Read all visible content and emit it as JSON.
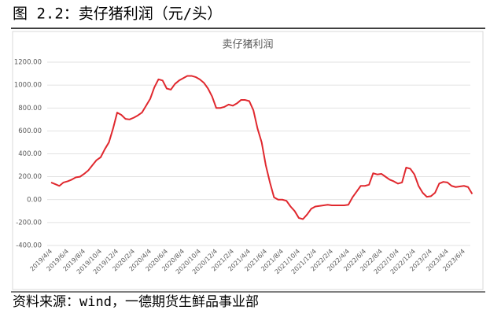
{
  "header": {
    "title": "图 2.2：卖仔猪利润（元/头）"
  },
  "source": "资料来源：wind，一德期货生鲜品事业部",
  "chart_data": {
    "type": "line",
    "title": "卖仔猪利润",
    "categories": [
      "2019/4/4",
      null,
      null,
      null,
      "2019/6/4",
      null,
      null,
      null,
      "2019/8/4",
      null,
      null,
      null,
      "2019/10/4",
      null,
      null,
      null,
      "2019/12/4",
      null,
      null,
      null,
      "2020/2/4",
      null,
      null,
      null,
      "2020/4/4",
      null,
      null,
      null,
      "2020/6/4",
      null,
      null,
      null,
      "2020/8/4",
      null,
      null,
      null,
      "2020/10/4",
      null,
      null,
      null,
      "2020/12/4",
      null,
      null,
      null,
      "2021/2/4",
      null,
      null,
      null,
      "2021/4/4",
      null,
      null,
      null,
      "2021/6/4",
      null,
      null,
      null,
      "2021/8/4",
      null,
      null,
      null,
      "2021/10/4",
      null,
      null,
      null,
      "2021/12/4",
      null,
      null,
      null,
      "2022/2/4",
      null,
      null,
      null,
      "2022/4/4",
      null,
      null,
      null,
      "2022/6/4",
      null,
      null,
      null,
      "2022/8/4",
      null,
      null,
      null,
      "2022/10/4",
      null,
      null,
      null,
      "2022/12/4",
      null,
      null,
      null,
      "2023/2/4",
      null,
      null,
      null,
      "2023/4/4",
      null,
      null,
      null,
      "2023/6/4",
      null,
      null
    ],
    "values": [
      150,
      135,
      120,
      150,
      160,
      175,
      195,
      200,
      225,
      255,
      300,
      345,
      370,
      440,
      500,
      620,
      760,
      740,
      705,
      700,
      715,
      735,
      760,
      820,
      880,
      980,
      1050,
      1040,
      970,
      960,
      1010,
      1040,
      1060,
      1080,
      1080,
      1070,
      1050,
      1020,
      970,
      900,
      800,
      800,
      810,
      830,
      820,
      840,
      870,
      870,
      860,
      780,
      620,
      500,
      300,
      150,
      20,
      0,
      0,
      -10,
      -60,
      -100,
      -160,
      -170,
      -130,
      -80,
      -60,
      -55,
      -50,
      -45,
      -50,
      -50,
      -50,
      -50,
      -45,
      20,
      70,
      120,
      120,
      130,
      230,
      220,
      225,
      200,
      175,
      160,
      140,
      150,
      280,
      270,
      220,
      120,
      60,
      25,
      30,
      60,
      140,
      155,
      150,
      120,
      110,
      115,
      120,
      110,
      50
    ],
    "color": "#e0282e",
    "ylim": [
      -400,
      1200
    ],
    "yticks": [
      {
        "value": -400,
        "label": "-400.00"
      },
      {
        "value": -200,
        "label": "-200.00"
      },
      {
        "value": 0,
        "label": "0.00"
      },
      {
        "value": 200,
        "label": "200.00"
      },
      {
        "value": 400,
        "label": "400.00"
      },
      {
        "value": 600,
        "label": "600.00"
      },
      {
        "value": 800,
        "label": "800.00"
      },
      {
        "value": 1000,
        "label": "1000.00"
      },
      {
        "value": 1200,
        "label": "1200.00"
      }
    ],
    "grid": true
  }
}
